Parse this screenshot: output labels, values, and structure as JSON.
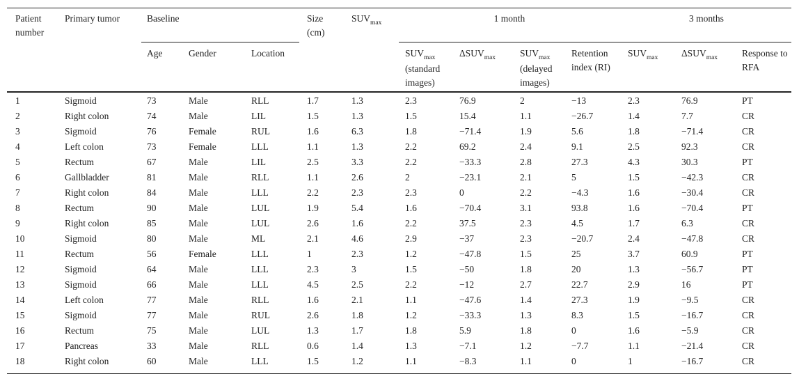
{
  "table": {
    "top_header": [
      {
        "text": "Patient number"
      },
      {
        "text": "Primary tumor"
      },
      {
        "text": "Baseline"
      },
      {
        "text": "Size (cm)"
      },
      {
        "main": "SUV",
        "sub": "max"
      },
      {
        "text": "1 month"
      },
      {
        "text": "3 months"
      }
    ],
    "sub_header": [
      {
        "text": "Age"
      },
      {
        "text": "Gender"
      },
      {
        "text": "Location"
      },
      {
        "main": "SUV",
        "sub": "max",
        "note": "(standard images)"
      },
      {
        "main": "ΔSUV",
        "sub": "max"
      },
      {
        "main": "SUV",
        "sub": "max",
        "note": "(delayed images)"
      },
      {
        "text": "Retention index (RI)"
      },
      {
        "main": "SUV",
        "sub": "max"
      },
      {
        "main": "ΔSUV",
        "sub": "max"
      },
      {
        "text": "Response to RFA"
      }
    ],
    "rows": [
      [
        "1",
        "Sigmoid",
        "73",
        "Male",
        "RLL",
        "1.7",
        "1.3",
        "2.3",
        "76.9",
        "2",
        "−13",
        "2.3",
        "76.9",
        "PT"
      ],
      [
        "2",
        "Right colon",
        "74",
        "Male",
        "LIL",
        "1.5",
        "1.3",
        "1.5",
        "15.4",
        "1.1",
        "−26.7",
        "1.4",
        "7.7",
        "CR"
      ],
      [
        "3",
        "Sigmoid",
        "76",
        "Female",
        "RUL",
        "1.6",
        "6.3",
        "1.8",
        "−71.4",
        "1.9",
        "5.6",
        "1.8",
        "−71.4",
        "CR"
      ],
      [
        "4",
        "Left colon",
        "73",
        "Female",
        "LLL",
        "1.1",
        "1.3",
        "2.2",
        "69.2",
        "2.4",
        "9.1",
        "2.5",
        "92.3",
        "CR"
      ],
      [
        "5",
        "Rectum",
        "67",
        "Male",
        "LIL",
        "2.5",
        "3.3",
        "2.2",
        "−33.3",
        "2.8",
        "27.3",
        "4.3",
        "30.3",
        "PT"
      ],
      [
        "6",
        "Gallbladder",
        "81",
        "Male",
        "RLL",
        "1.1",
        "2.6",
        "2",
        "−23.1",
        "2.1",
        "5",
        "1.5",
        "−42.3",
        "CR"
      ],
      [
        "7",
        "Right colon",
        "84",
        "Male",
        "LLL",
        "2.2",
        "2.3",
        "2.3",
        "0",
        "2.2",
        "−4.3",
        "1.6",
        "−30.4",
        "CR"
      ],
      [
        "8",
        "Rectum",
        "90",
        "Male",
        "LUL",
        "1.9",
        "5.4",
        "1.6",
        "−70.4",
        "3.1",
        "93.8",
        "1.6",
        "−70.4",
        "PT"
      ],
      [
        "9",
        "Right colon",
        "85",
        "Male",
        "LUL",
        "2.6",
        "1.6",
        "2.2",
        "37.5",
        "2.3",
        "4.5",
        "1.7",
        "6.3",
        "CR"
      ],
      [
        "10",
        "Sigmoid",
        "80",
        "Male",
        "ML",
        "2.1",
        "4.6",
        "2.9",
        "−37",
        "2.3",
        "−20.7",
        "2.4",
        "−47.8",
        "CR"
      ],
      [
        "11",
        "Rectum",
        "56",
        "Female",
        "LLL",
        "1",
        "2.3",
        "1.2",
        "−47.8",
        "1.5",
        "25",
        "3.7",
        "60.9",
        "PT"
      ],
      [
        "12",
        "Sigmoid",
        "64",
        "Male",
        "LLL",
        "2.3",
        "3",
        "1.5",
        "−50",
        "1.8",
        "20",
        "1.3",
        "−56.7",
        "PT"
      ],
      [
        "13",
        "Sigmoid",
        "66",
        "Male",
        "LLL",
        "4.5",
        "2.5",
        "2.2",
        "−12",
        "2.7",
        "22.7",
        "2.9",
        "16",
        "PT"
      ],
      [
        "14",
        "Left colon",
        "77",
        "Male",
        "RLL",
        "1.6",
        "2.1",
        "1.1",
        "−47.6",
        "1.4",
        "27.3",
        "1.9",
        "−9.5",
        "CR"
      ],
      [
        "15",
        "Sigmoid",
        "77",
        "Male",
        "RUL",
        "2.6",
        "1.8",
        "1.2",
        "−33.3",
        "1.3",
        "8.3",
        "1.5",
        "−16.7",
        "CR"
      ],
      [
        "16",
        "Rectum",
        "75",
        "Male",
        "LUL",
        "1.3",
        "1.7",
        "1.8",
        "5.9",
        "1.8",
        "0",
        "1.6",
        "−5.9",
        "CR"
      ],
      [
        "17",
        "Pancreas",
        "33",
        "Male",
        "RLL",
        "0.6",
        "1.4",
        "1.3",
        "−7.1",
        "1.2",
        "−7.7",
        "1.1",
        "−21.4",
        "CR"
      ],
      [
        "18",
        "Right colon",
        "60",
        "Male",
        "LLL",
        "1.5",
        "1.2",
        "1.1",
        "−8.3",
        "1.1",
        "0",
        "1",
        "−16.7",
        "CR"
      ]
    ]
  }
}
